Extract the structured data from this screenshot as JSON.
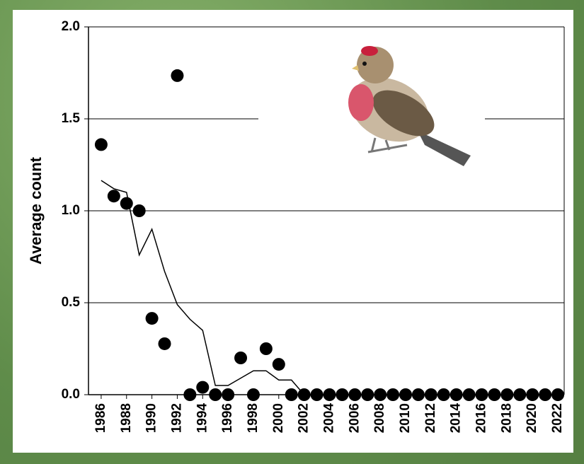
{
  "chart_data": {
    "type": "scatter",
    "y_label": "Average count",
    "x": [
      1986,
      1987,
      1988,
      1989,
      1990,
      1991,
      1992,
      1993,
      1994,
      1995,
      1996,
      1997,
      1998,
      1999,
      2000,
      2001,
      2002,
      2003,
      2004,
      2005,
      2006,
      2007,
      2008,
      2009,
      2010,
      2011,
      2012,
      2013,
      2014,
      2015,
      2016,
      2017,
      2018,
      2019,
      2020,
      2021,
      2022
    ],
    "series": [
      {
        "type": "scatter",
        "color": "#000000",
        "values": [
          1.36,
          1.08,
          1.04,
          1.0,
          0.415,
          0.277,
          1.735,
          0,
          0.04,
          0,
          0,
          0.2,
          0,
          0.25,
          0.165,
          0,
          0,
          0,
          0,
          0,
          0,
          0,
          0,
          0,
          0,
          0,
          0,
          0,
          0,
          0,
          0,
          0,
          0,
          0,
          0,
          0,
          0
        ]
      },
      {
        "type": "line",
        "color": "#000000",
        "values": [
          1.165,
          1.12,
          1.1,
          0.76,
          0.9,
          0.67,
          0.49,
          0.41,
          0.35,
          0.05,
          0.05,
          0.09,
          0.13,
          0.13,
          0.08,
          0.08,
          0,
          0,
          0,
          0,
          0,
          0,
          0,
          0,
          0,
          0,
          0,
          0,
          0,
          0,
          0,
          0,
          0,
          0,
          0,
          0,
          0
        ]
      }
    ],
    "xlim": [
      1985,
      2022.5
    ],
    "xticks": [
      1986,
      1988,
      1990,
      1992,
      1994,
      1996,
      1998,
      2000,
      2002,
      2004,
      2006,
      2008,
      2010,
      2012,
      2014,
      2016,
      2018,
      2020,
      2022
    ],
    "ylim": [
      0,
      2
    ],
    "yticks": [
      {
        "value": 0,
        "label": "0.0"
      },
      0.5,
      {
        "value": 1,
        "label": "1.0"
      },
      1.5,
      {
        "value": 2,
        "label": "2.0"
      }
    ],
    "grid": true
  }
}
